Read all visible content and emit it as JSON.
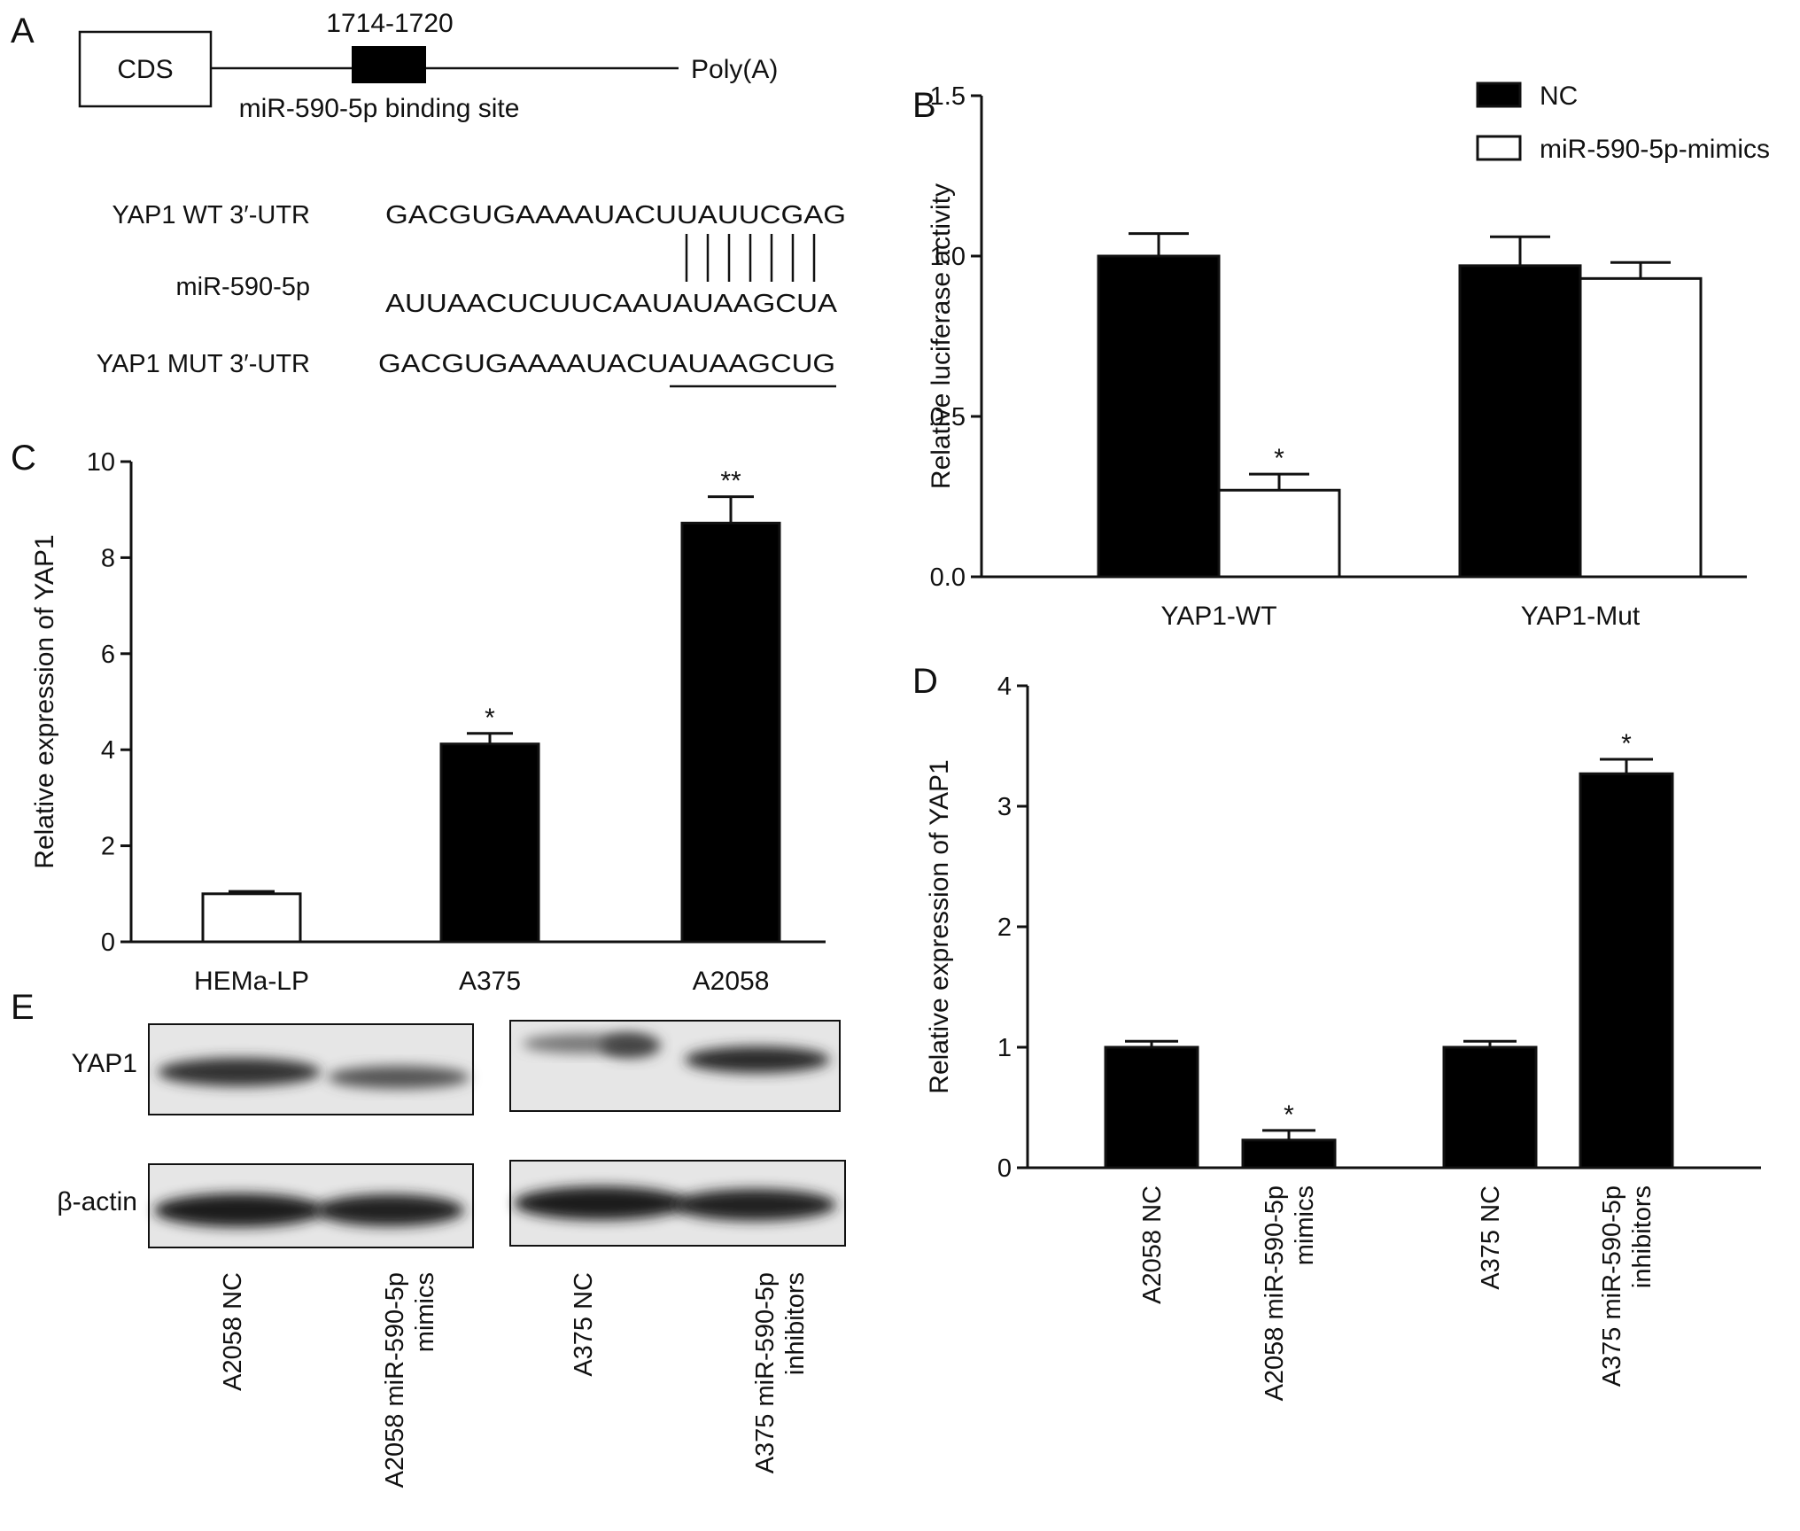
{
  "panel_letters": {
    "a": "A",
    "b": "B",
    "c": "C",
    "d": "D",
    "e": "E"
  },
  "diagram": {
    "cds_label": "CDS",
    "site_position": "1714-1720",
    "site_label": "miR-590-5p binding site",
    "tail_label": "Poly(A)"
  },
  "sequences": {
    "wt_label": "YAP1 WT 3′-UTR",
    "wt_seq": "GACGUGAAAAUACUUAUUCGAG",
    "mir_label": "miR-590-5p",
    "mir_seq": "AUUAACUCUUCAAUAUAAGCUA",
    "mut_label": "YAP1 MUT 3′-UTR",
    "mut_seq": "GACGUGAAAAUACUAUAAGCUG",
    "pair_count": 7
  },
  "chart_data": [
    {
      "panel": "B",
      "type": "bar",
      "categories": [
        "YAP1-WT",
        "YAP1-Mut"
      ],
      "series": [
        {
          "name": "NC",
          "values": [
            1.0,
            0.97
          ],
          "errors": [
            0.07,
            0.09
          ],
          "fill": "#000000"
        },
        {
          "name": "miR-590-5p-mimics",
          "values": [
            0.27,
            0.93
          ],
          "errors": [
            0.05,
            0.05
          ],
          "fill": "#ffffff"
        }
      ],
      "significance": [
        {
          "category": 0,
          "series": 1,
          "mark": "*"
        }
      ],
      "ylabel": "Relative luciferase activity",
      "ylim": [
        0,
        1.5
      ],
      "yticks": [
        "0.0",
        "0.5",
        "1.0",
        "1.5"
      ],
      "legend_position": "top-right"
    },
    {
      "panel": "C",
      "type": "bar",
      "categories": [
        "HEMa-LP",
        "A375",
        "A2058"
      ],
      "values": [
        1.0,
        4.12,
        8.72
      ],
      "errors": [
        0.05,
        0.22,
        0.55
      ],
      "fills": [
        "#ffffff",
        "#000000",
        "#000000"
      ],
      "significance": [
        "",
        "*",
        "**"
      ],
      "ylabel": "Relative expression of YAP1",
      "ylim": [
        0,
        10
      ],
      "yticks": [
        "0",
        "2",
        "4",
        "6",
        "8",
        "10"
      ]
    },
    {
      "panel": "D",
      "type": "bar",
      "categories": [
        "A2058 NC",
        "A2058 miR-590-5p mimics",
        "A375 NC",
        "A375 miR-590-5p inhibitors"
      ],
      "tick_lines": [
        [
          "A2058 NC"
        ],
        [
          "A2058 miR-590-5p",
          "mimics"
        ],
        [
          "A375 NC"
        ],
        [
          "A375 miR-590-5p",
          "inhibitors"
        ]
      ],
      "values": [
        1.0,
        0.23,
        1.0,
        3.27
      ],
      "errors": [
        0.05,
        0.08,
        0.05,
        0.12
      ],
      "significance": [
        "",
        "*",
        "",
        "*"
      ],
      "ylabel": "Relative expression of YAP1",
      "ylim": [
        0,
        4
      ],
      "yticks": [
        "0",
        "1",
        "2",
        "3",
        "4"
      ]
    }
  ],
  "blot": {
    "rows": [
      "YAP1",
      "β-actin"
    ],
    "lanes": [
      [
        "A2058 NC"
      ],
      [
        "A2058 miR-590-5p",
        "mimics"
      ],
      [
        "A375 NC"
      ],
      [
        "A375 miR-590-5p",
        "inhibitors"
      ]
    ]
  }
}
